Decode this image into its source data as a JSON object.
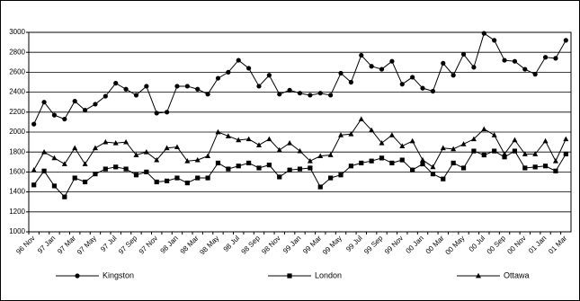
{
  "chart_data": {
    "type": "line",
    "categories": [
      "96 Nov",
      null,
      "97 Jan",
      null,
      "97 Mar",
      null,
      "97 May",
      null,
      "97 Jul",
      null,
      "97 Sep",
      null,
      "97 Nov",
      null,
      "98 Jan",
      null,
      "98 Mar",
      null,
      "98 May",
      null,
      "98 Jul",
      null,
      "98 Sep",
      null,
      "98 Nov",
      null,
      "99 Jan",
      null,
      "99 Mar",
      null,
      "99 May",
      null,
      "99 Jul",
      null,
      "99 Sep",
      null,
      "99 Nov",
      null,
      "00 Jan",
      null,
      "00 Mar",
      null,
      "00 May",
      null,
      "00 Jul",
      null,
      "00 Sep",
      null,
      "00 Nov",
      null,
      "01 Jan",
      null,
      "01 Mar"
    ],
    "series": [
      {
        "name": "Kingston",
        "color": "#000000",
        "marker": "circle",
        "values": [
          2080,
          2300,
          2170,
          2130,
          2310,
          2220,
          2280,
          2360,
          2490,
          2430,
          2370,
          2460,
          2190,
          2200,
          2460,
          2460,
          2430,
          2380,
          2540,
          2600,
          2720,
          2640,
          2460,
          2570,
          2380,
          2420,
          2390,
          2370,
          2390,
          2370,
          2590,
          2500,
          2770,
          2660,
          2630,
          2710,
          2480,
          2550,
          2440,
          2410,
          2690,
          2570,
          2780,
          2650,
          2990,
          2920,
          2720,
          2710,
          2630,
          2580,
          2750,
          2740,
          2920
        ]
      },
      {
        "name": "London",
        "color": "#000000",
        "marker": "square",
        "values": [
          1470,
          1610,
          1460,
          1350,
          1540,
          1500,
          1580,
          1630,
          1650,
          1630,
          1570,
          1600,
          1500,
          1510,
          1540,
          1490,
          1540,
          1540,
          1690,
          1630,
          1660,
          1690,
          1640,
          1670,
          1550,
          1620,
          1630,
          1640,
          1450,
          1540,
          1570,
          1660,
          1690,
          1710,
          1740,
          1690,
          1720,
          1620,
          1680,
          1580,
          1530,
          1690,
          1640,
          1810,
          1770,
          1810,
          1750,
          1810,
          1640,
          1650,
          1660,
          1610,
          1780
        ]
      },
      {
        "name": "Ottawa",
        "color": "#000000",
        "marker": "triangle",
        "values": [
          1620,
          1800,
          1740,
          1680,
          1840,
          1680,
          1840,
          1900,
          1890,
          1900,
          1770,
          1800,
          1720,
          1840,
          1850,
          1710,
          1720,
          1760,
          2000,
          1960,
          1920,
          1930,
          1870,
          1930,
          1820,
          1890,
          1810,
          1710,
          1760,
          1770,
          1970,
          1980,
          2130,
          2020,
          1890,
          1970,
          1860,
          1910,
          1720,
          1650,
          1840,
          1830,
          1880,
          1930,
          2030,
          1970,
          1780,
          1920,
          1780,
          1780,
          1910,
          1710,
          1930
        ]
      }
    ],
    "ylim": [
      1000,
      3000
    ],
    "yticks": [
      1000,
      1200,
      1400,
      1600,
      1800,
      2000,
      2200,
      2400,
      2600,
      2800,
      3000
    ],
    "grid": true,
    "legend": "bottom"
  }
}
